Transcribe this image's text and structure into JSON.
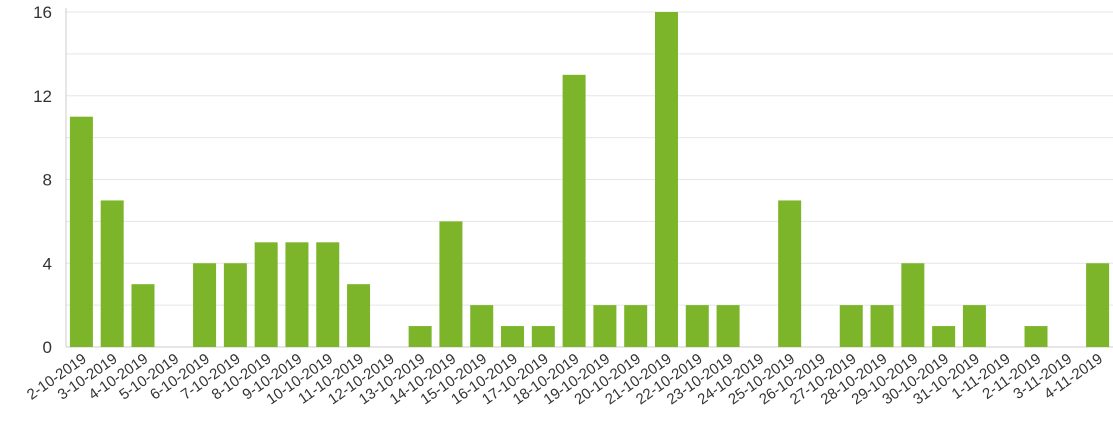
{
  "chart_data": {
    "type": "bar",
    "title": "",
    "xlabel": "",
    "ylabel": "",
    "ylim": [
      0,
      16
    ],
    "yticks": [
      0,
      4,
      8,
      12,
      16
    ],
    "grid": "horizontal",
    "bar_color": "#7cb52a",
    "categories": [
      "2-10-2019",
      "3-10-2019",
      "4-10-2019",
      "5-10-2019",
      "6-10-2019",
      "7-10-2019",
      "8-10-2019",
      "9-10-2019",
      "10-10-2019",
      "11-10-2019",
      "12-10-2019",
      "13-10-2019",
      "14-10-2019",
      "15-10-2019",
      "16-10-2019",
      "17-10-2019",
      "18-10-2019",
      "19-10-2019",
      "20-10-2019",
      "21-10-2019",
      "22-10-2019",
      "23-10-2019",
      "24-10-2019",
      "25-10-2019",
      "26-10-2019",
      "27-10-2019",
      "28-10-2019",
      "29-10-2019",
      "30-10-2019",
      "31-10-2019",
      "1-11-2019",
      "2-11-2019",
      "3-11-2019",
      "4-11-2019"
    ],
    "values": [
      11,
      7,
      3,
      0,
      4,
      4,
      5,
      5,
      5,
      3,
      0,
      1,
      6,
      2,
      1,
      1,
      13,
      2,
      2,
      16,
      2,
      2,
      0,
      7,
      0,
      2,
      2,
      4,
      1,
      2,
      0,
      1,
      0,
      4
    ]
  }
}
